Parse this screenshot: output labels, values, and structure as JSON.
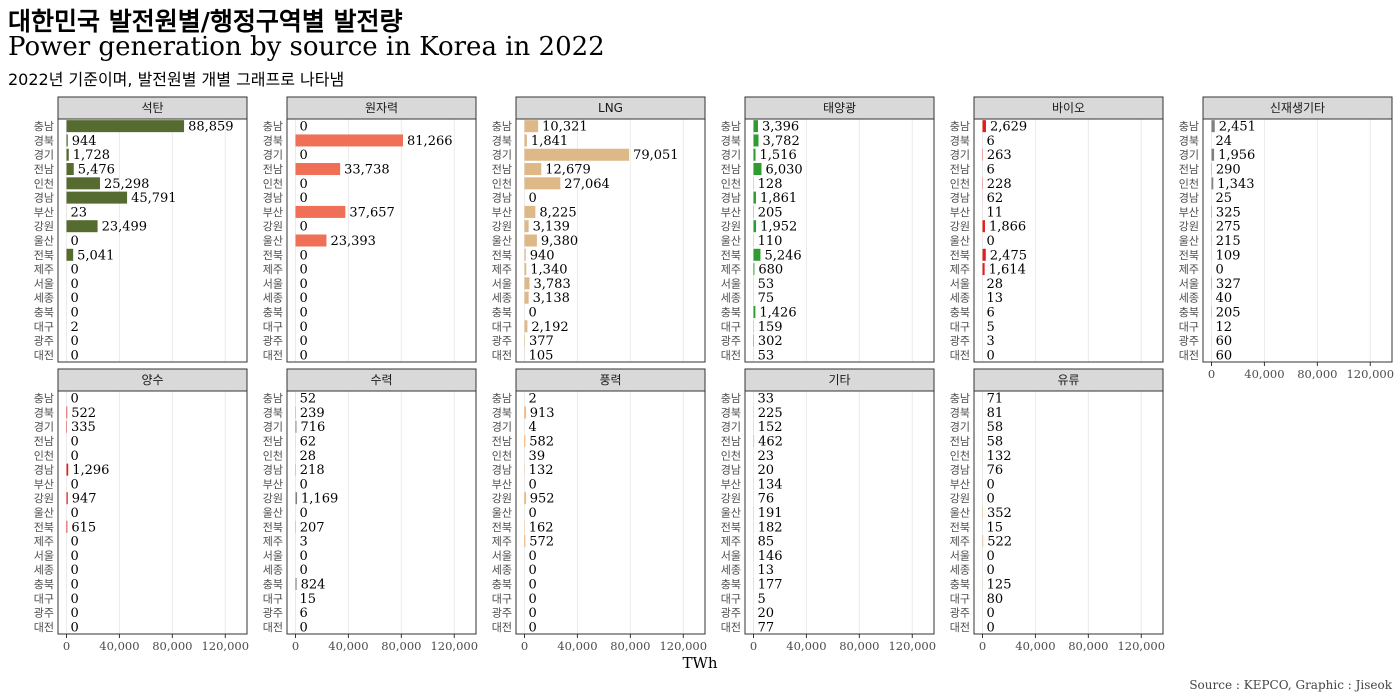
{
  "title_ko": "대한민국 발전원별/행정구역별 발전량",
  "title_en": "Power generation by source in Korea in 2022",
  "subtitle": "2022년 기준이며, 발전원별 개별 그래프로 나타냄",
  "caption": "Source : KEPCO, Graphic : Jiseok",
  "chart_data": {
    "type": "bar",
    "orientation": "horizontal",
    "facets": true,
    "xlabel": "TWh",
    "ylabel": "",
    "xlim": [
      0,
      130000
    ],
    "x_ticks": [
      0,
      40000,
      80000,
      120000
    ],
    "x_tick_labels": [
      "0",
      "40,000",
      "80,000",
      "120,000"
    ],
    "grid": true,
    "legend": "none",
    "categories": [
      "충남",
      "경북",
      "경기",
      "전남",
      "인천",
      "경남",
      "부산",
      "강원",
      "울산",
      "전북",
      "제주",
      "서울",
      "세종",
      "충북",
      "대구",
      "광주",
      "대전"
    ],
    "series": [
      {
        "name": "석탄",
        "color": "#556b2f",
        "values": [
          88859,
          944,
          1728,
          5476,
          25298,
          45791,
          23,
          23499,
          0,
          5041,
          0,
          0,
          0,
          0,
          2,
          0,
          0
        ]
      },
      {
        "name": "원자력",
        "color": "#f07057",
        "values": [
          0,
          81266,
          0,
          33738,
          0,
          0,
          37657,
          0,
          23393,
          0,
          0,
          0,
          0,
          0,
          0,
          0,
          0
        ]
      },
      {
        "name": "LNG",
        "color": "#deb887",
        "values": [
          10321,
          1841,
          79051,
          12679,
          27064,
          0,
          8225,
          3139,
          9380,
          940,
          1340,
          3783,
          3138,
          0,
          2192,
          377,
          105
        ]
      },
      {
        "name": "태양광",
        "color": "#2e9c2e",
        "values": [
          3396,
          3782,
          1516,
          6030,
          128,
          1861,
          205,
          1952,
          110,
          5246,
          680,
          53,
          75,
          1426,
          159,
          302,
          53
        ]
      },
      {
        "name": "바이오",
        "color": "#e0201f",
        "values": [
          2629,
          6,
          263,
          6,
          228,
          62,
          11,
          1866,
          0,
          2475,
          1614,
          28,
          13,
          6,
          5,
          3,
          0
        ]
      },
      {
        "name": "신재생기타",
        "color": "#808080",
        "values": [
          2451,
          24,
          1956,
          290,
          1343,
          25,
          325,
          275,
          215,
          109,
          0,
          327,
          40,
          205,
          12,
          60,
          60
        ]
      },
      {
        "name": "양수",
        "color": "#e0201f",
        "values": [
          0,
          522,
          335,
          0,
          0,
          1296,
          0,
          947,
          0,
          615,
          0,
          0,
          0,
          0,
          0,
          0,
          0
        ]
      },
      {
        "name": "수력",
        "color": "#808080",
        "values": [
          52,
          239,
          716,
          62,
          28,
          218,
          0,
          1169,
          0,
          207,
          3,
          0,
          0,
          824,
          15,
          6,
          0
        ]
      },
      {
        "name": "풍력",
        "color": "#ff9933",
        "values": [
          2,
          913,
          4,
          582,
          39,
          132,
          0,
          952,
          0,
          162,
          572,
          0,
          0,
          0,
          0,
          0,
          0
        ]
      },
      {
        "name": "기타",
        "color": "#bbbbbb",
        "values": [
          33,
          225,
          152,
          462,
          23,
          20,
          134,
          76,
          191,
          182,
          85,
          146,
          13,
          177,
          5,
          20,
          77
        ]
      },
      {
        "name": "유류",
        "color": "#deb887",
        "values": [
          71,
          81,
          58,
          58,
          132,
          76,
          0,
          0,
          352,
          15,
          522,
          0,
          0,
          125,
          80,
          0,
          0
        ]
      }
    ]
  }
}
